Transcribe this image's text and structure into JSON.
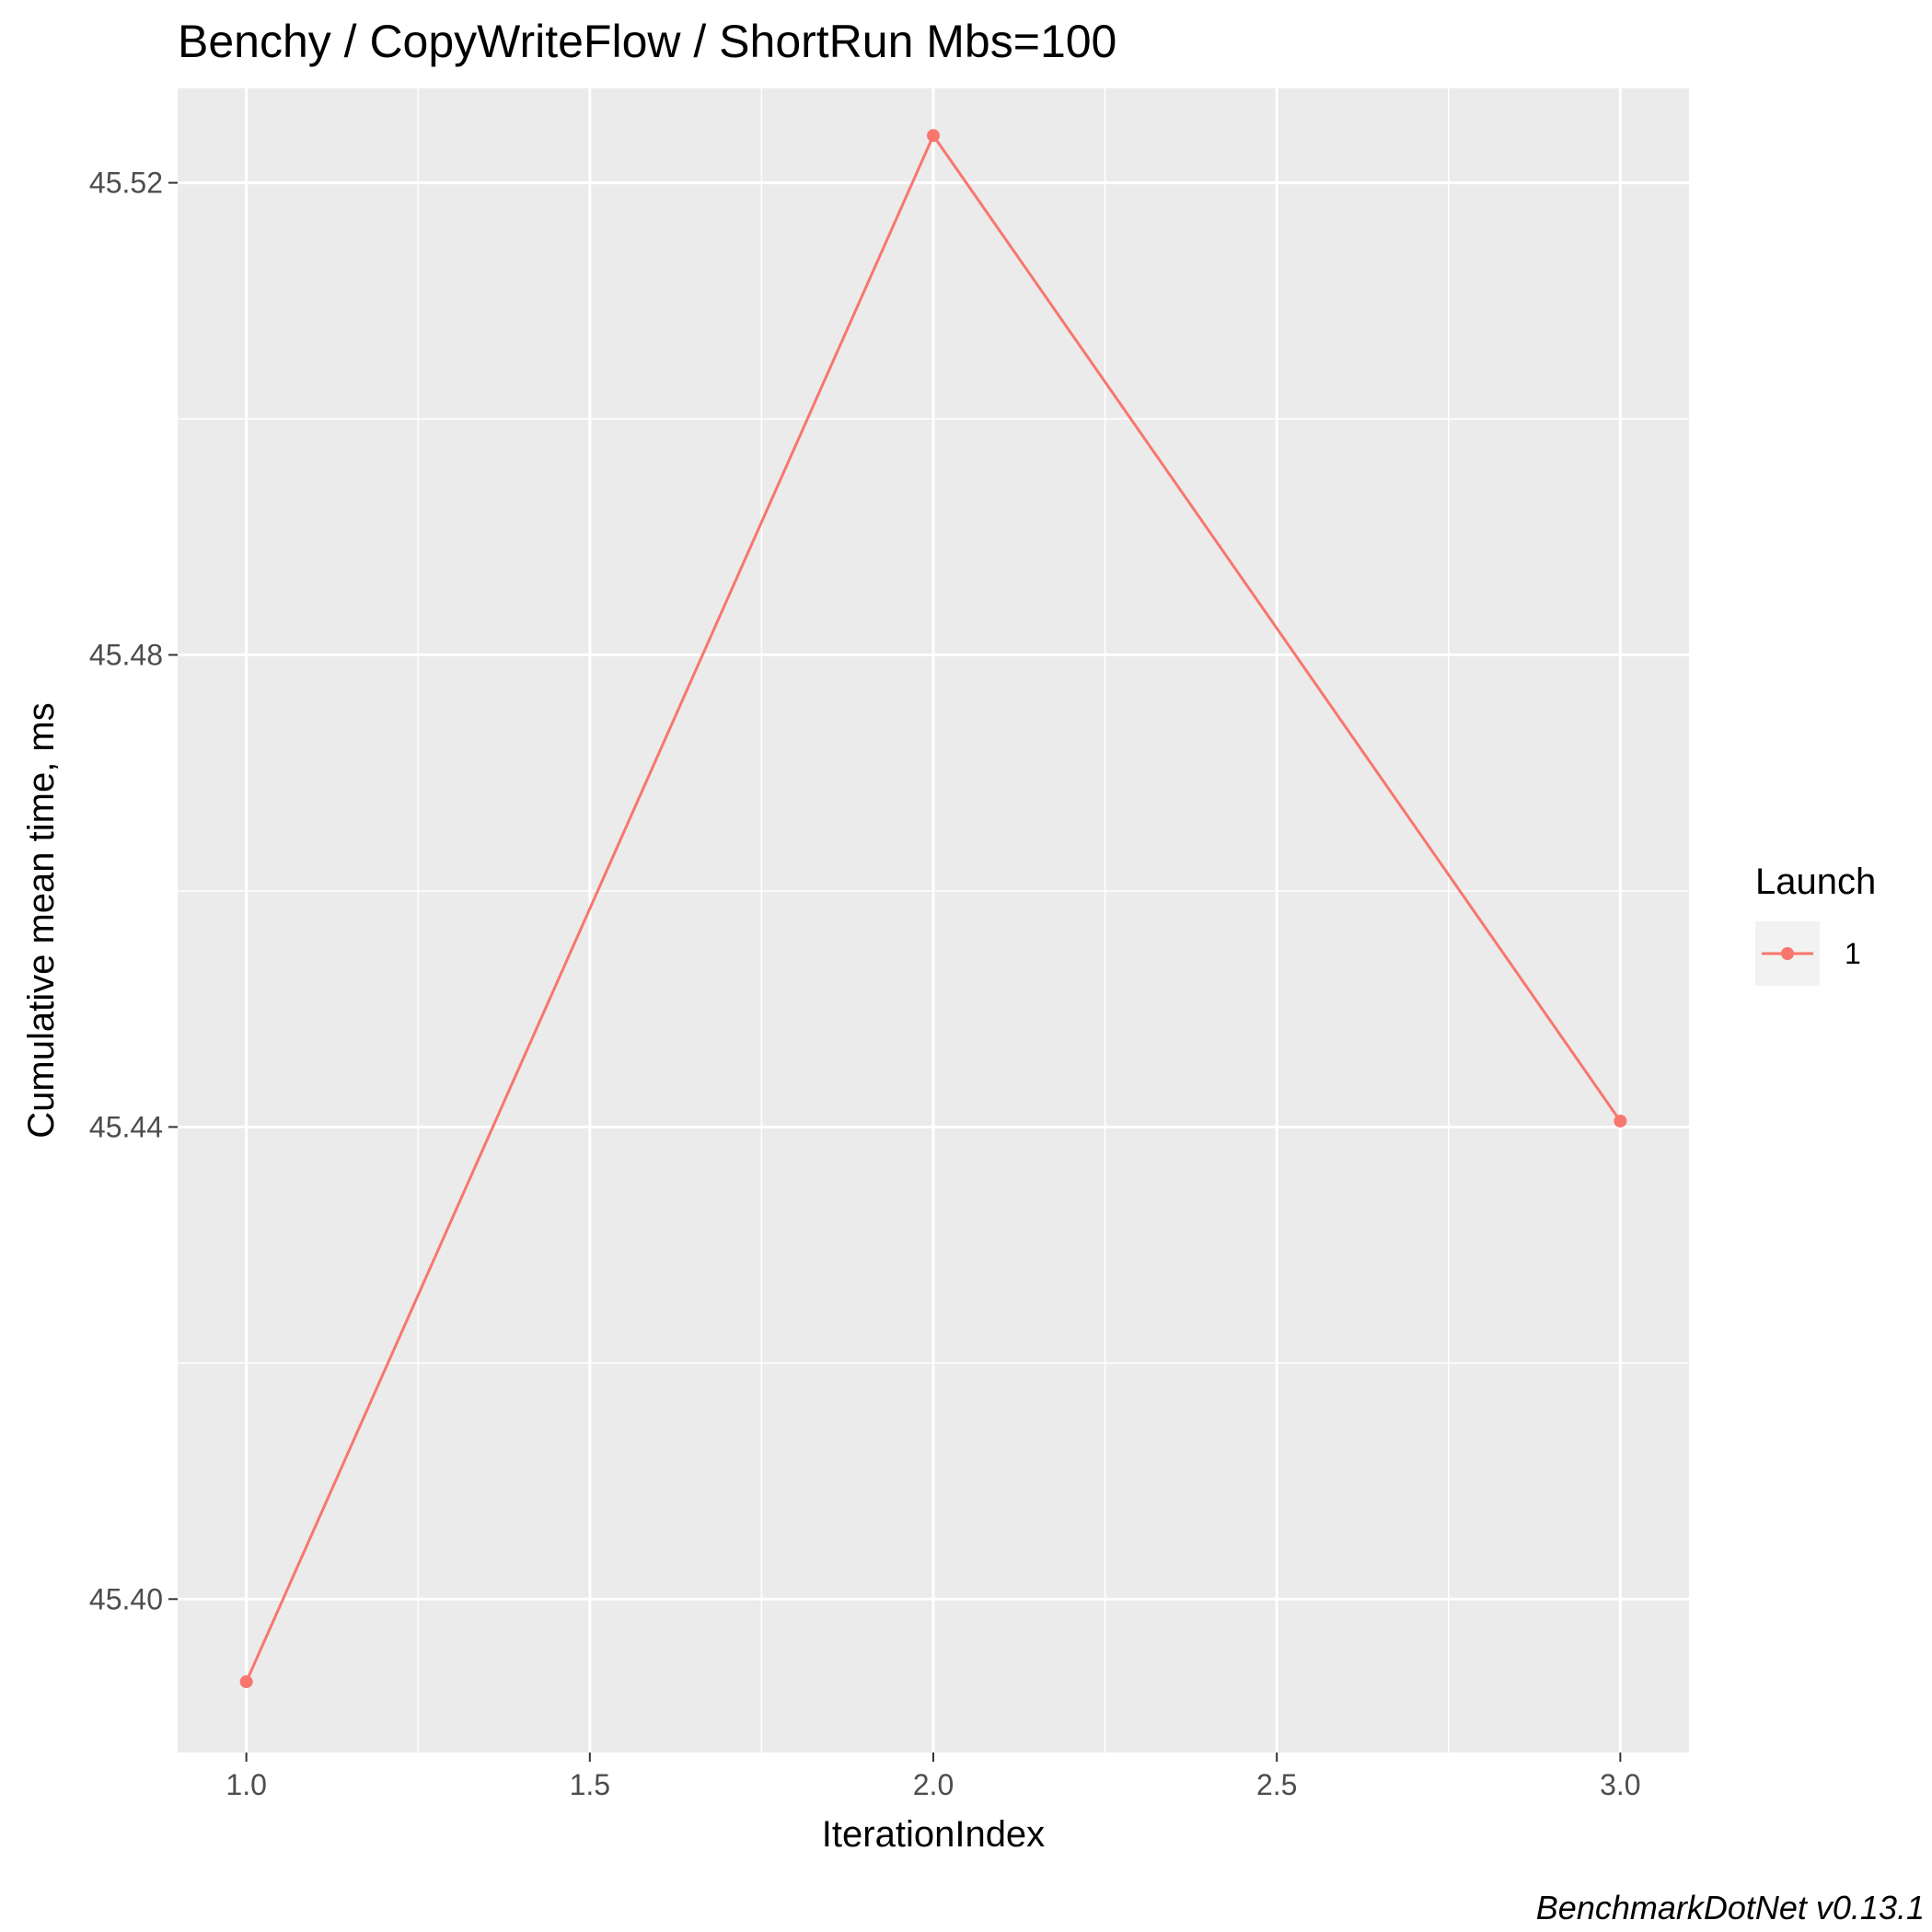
{
  "chart_data": {
    "type": "line",
    "title": "Benchy / CopyWriteFlow / ShortRun Mbs=100",
    "xlabel": "IterationIndex",
    "ylabel": "Cumulative mean time, ms",
    "caption": "BenchmarkDotNet v0.13.1",
    "xlim": [
      0.9,
      3.1
    ],
    "ylim": [
      45.387,
      45.528
    ],
    "x_ticks": [
      1.0,
      1.5,
      2.0,
      2.5,
      3.0
    ],
    "x_tick_labels": [
      "1.0",
      "1.5",
      "2.0",
      "2.5",
      "3.0"
    ],
    "y_ticks": [
      45.4,
      45.44,
      45.48,
      45.52
    ],
    "y_tick_labels": [
      "45.40",
      "45.44",
      "45.48",
      "45.52"
    ],
    "grid": true,
    "legend": {
      "title": "Launch",
      "position": "right"
    },
    "series": [
      {
        "name": "1",
        "color": "#F8766D",
        "x": [
          1,
          2,
          3
        ],
        "y": [
          45.393,
          45.524,
          45.4405
        ]
      }
    ]
  }
}
